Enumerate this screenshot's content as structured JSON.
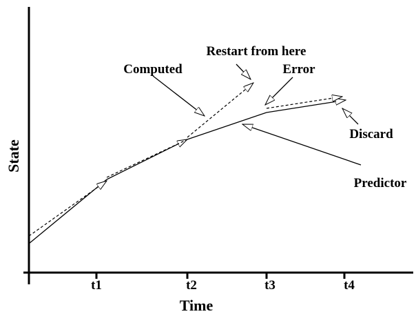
{
  "axes": {
    "y_label": "State",
    "x_label": "Time",
    "ticks": [
      "t1",
      "t2",
      "t3",
      "t4"
    ]
  },
  "annotations": [
    "Computed",
    "Restart from here",
    "Error",
    "Discard",
    "Predictor"
  ]
}
